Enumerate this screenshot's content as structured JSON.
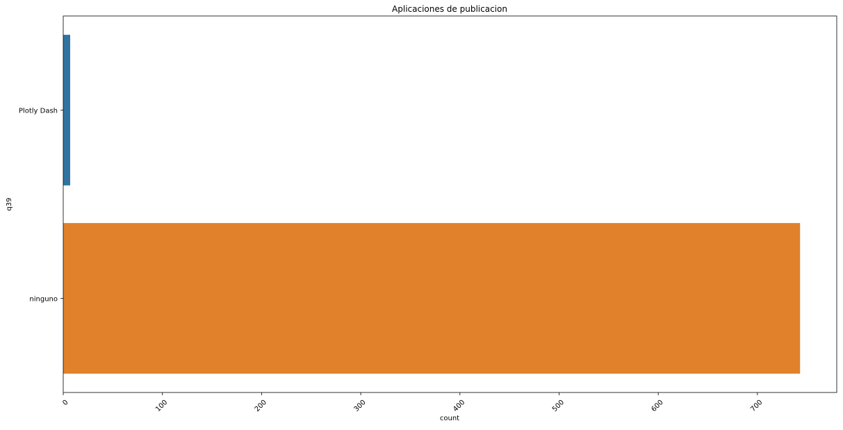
{
  "chart_data": {
    "type": "bar",
    "orientation": "horizontal",
    "title": "Aplicaciones de publicacion",
    "xlabel": "count",
    "ylabel": "q39",
    "categories": [
      "Plotly Dash",
      "ninguno"
    ],
    "values": [
      7,
      743
    ],
    "colors": [
      "#3274a1",
      "#e1812c"
    ],
    "xlim": [
      0,
      780
    ],
    "xticks": [
      0,
      100,
      200,
      300,
      400,
      500,
      600,
      700
    ],
    "xtick_labels": [
      "0",
      "100",
      "200",
      "300",
      "400",
      "500",
      "600",
      "700"
    ],
    "xtick_rotation": 45,
    "grid": false,
    "legend": "none"
  }
}
